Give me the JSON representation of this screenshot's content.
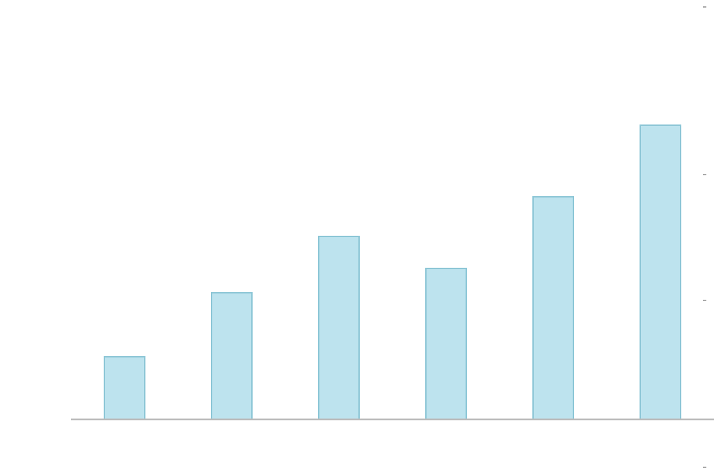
{
  "chart_data": {
    "type": "bar",
    "categories": [
      null,
      null,
      null,
      null,
      null,
      null
    ],
    "values": [
      9.0,
      18.2,
      26.3,
      21.7,
      32.0,
      42.3
    ],
    "color": "#bde3ee",
    "ylim": [
      -8,
      60.3
    ],
    "yticks": [
      -6.9,
      17.1,
      35.2,
      59.3
    ],
    "grid": false
  }
}
